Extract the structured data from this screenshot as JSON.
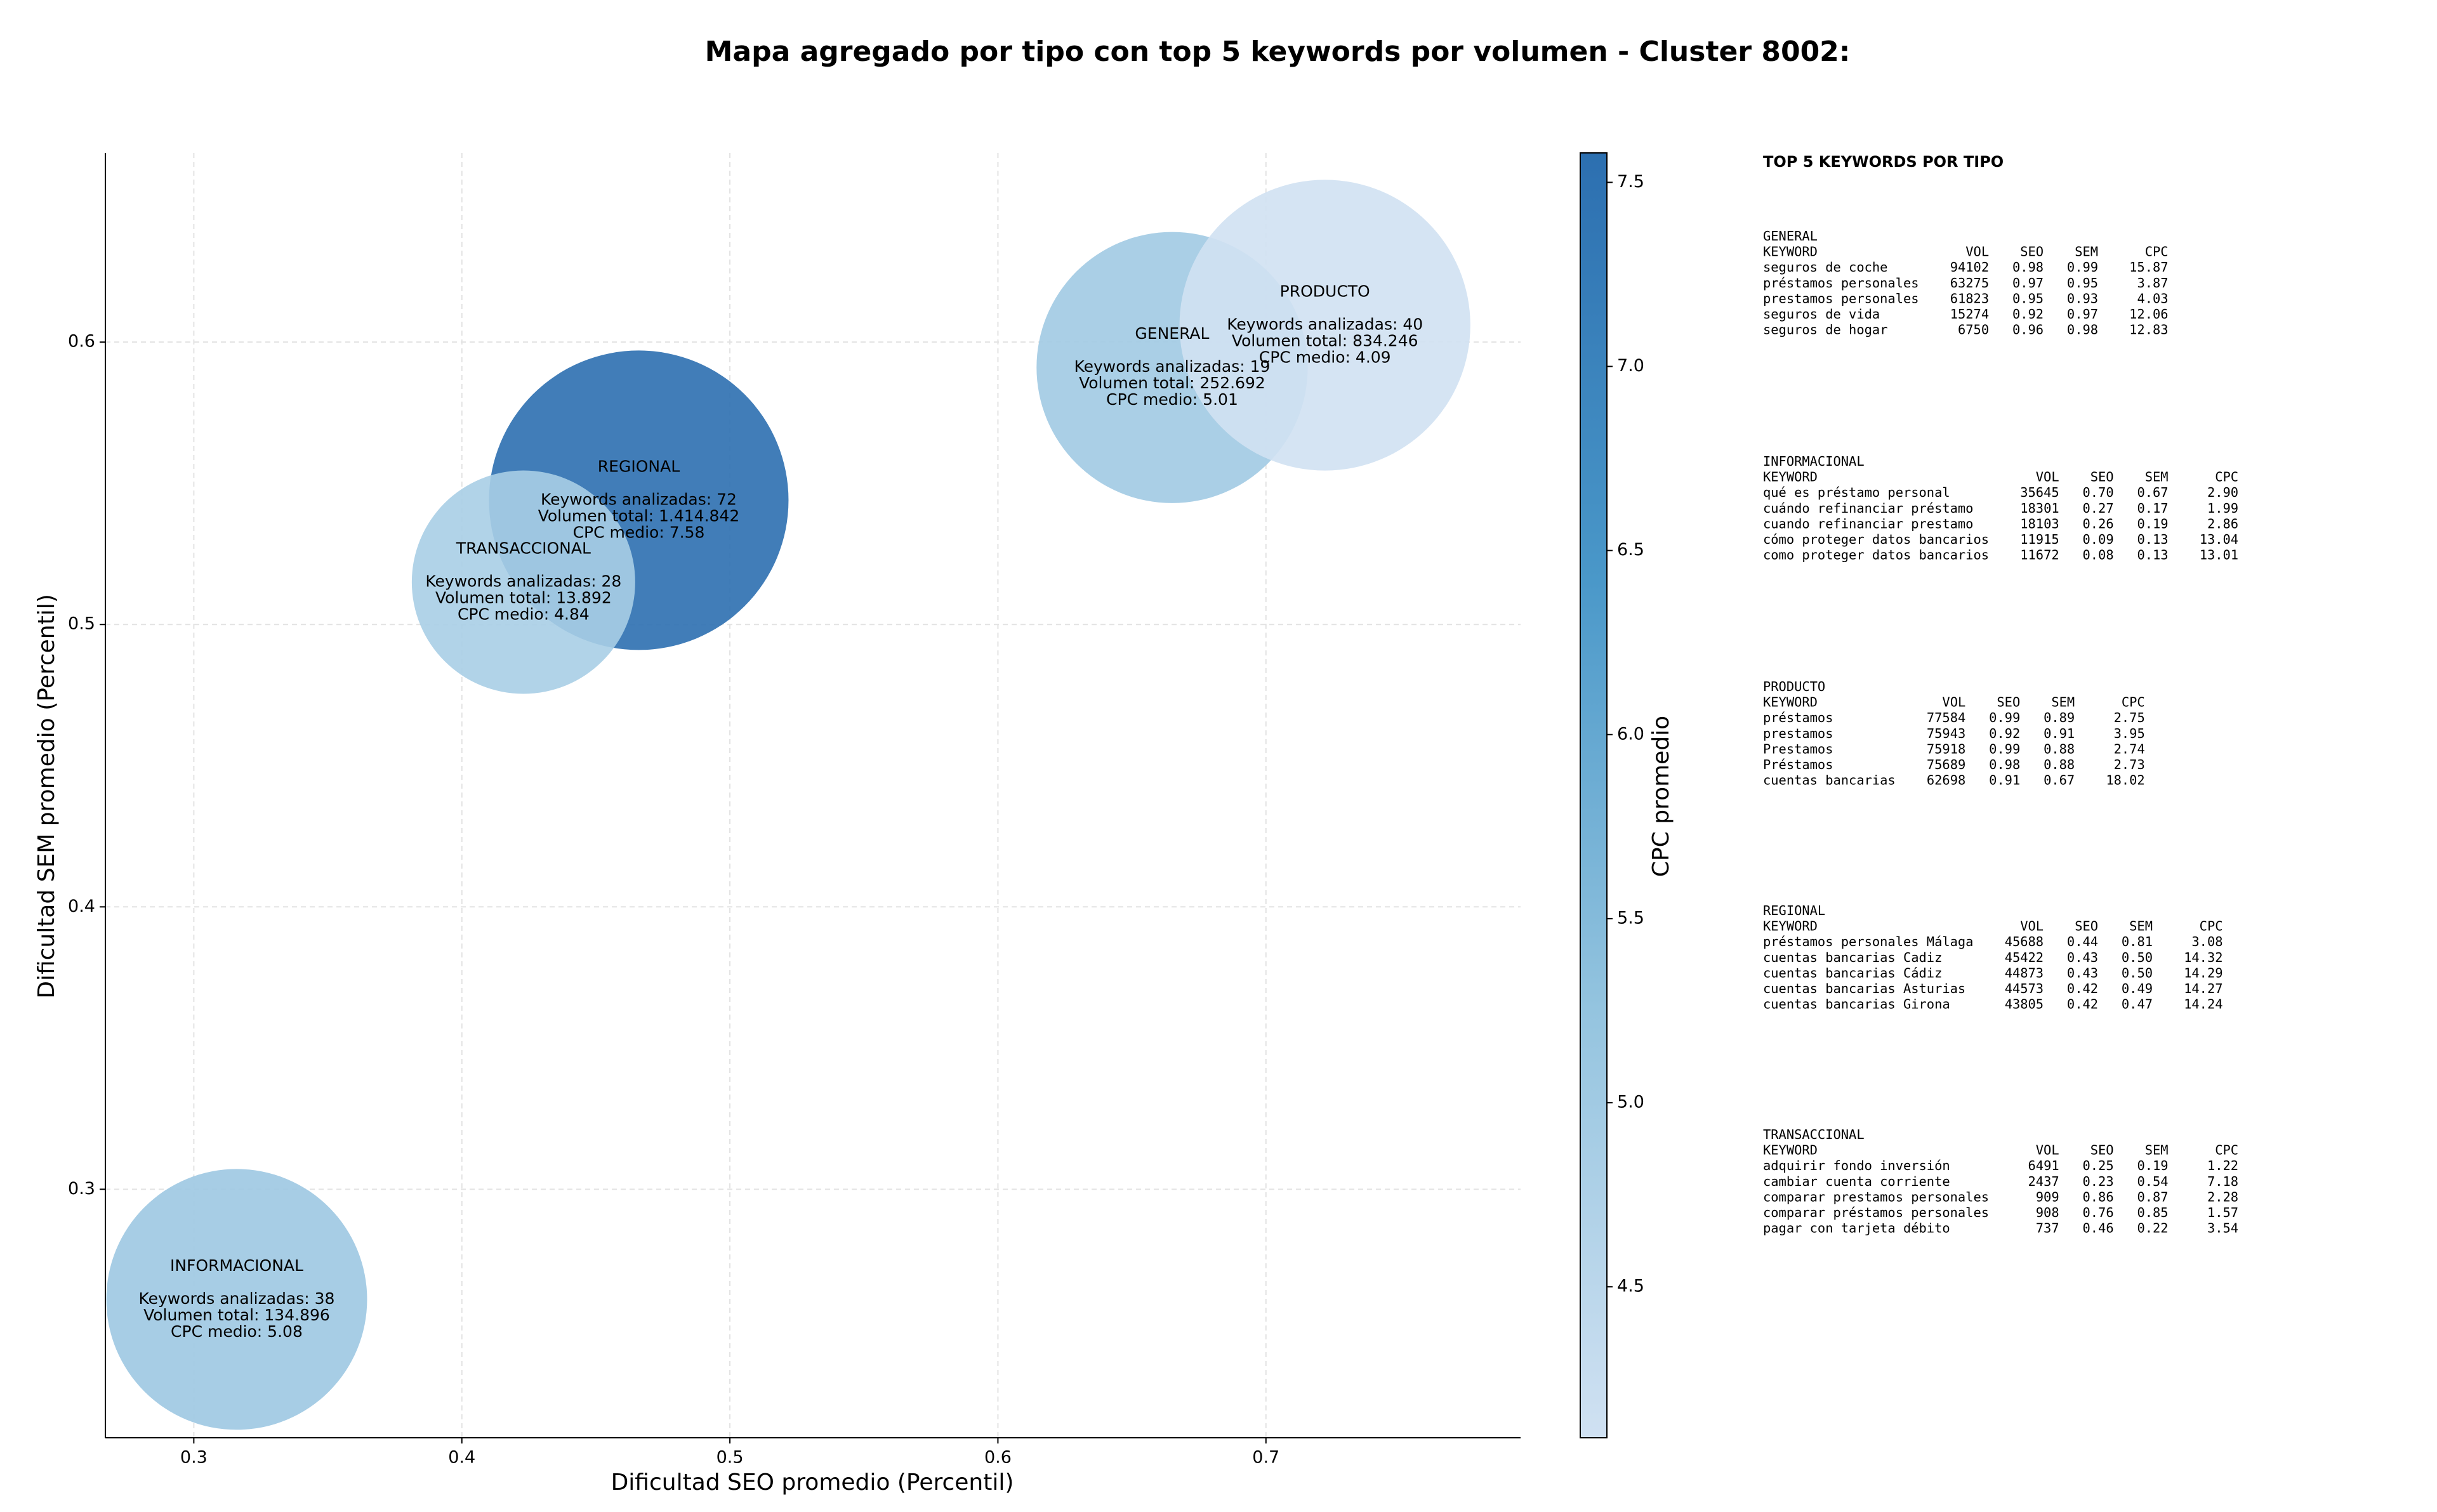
{
  "chart_data": {
    "type": "bubble",
    "title": "Mapa agregado por tipo con top 5 keywords por volumen - Cluster 8002:",
    "x_label": "Dificultad SEO promedio (Percentil)",
    "y_label": "Dificultad SEM promedio (Percentil)",
    "colorbar_label": "CPC promedio",
    "xlim": [
      0.267,
      0.795
    ],
    "ylim": [
      0.212,
      0.667
    ],
    "xticks": [
      0.3,
      0.4,
      0.5,
      0.6,
      0.7
    ],
    "yticks": [
      0.3,
      0.4,
      0.5,
      0.6
    ],
    "clim": [
      4.09,
      7.58
    ],
    "cticks": [
      4.5,
      {
        "value": 5,
        "label": "5.0"
      },
      5.5,
      {
        "value": 6,
        "label": "6.0"
      },
      6.5,
      {
        "value": 7,
        "label": "7.0"
      },
      7.5
    ],
    "colormap": [
      "#d0e1f2",
      "#94c4df",
      "#4a98c9",
      "#2c6fb0"
    ],
    "grid": true,
    "points": [
      {
        "name": "GENERAL",
        "x": 0.665,
        "y": 0.591,
        "volume": 252692,
        "cpc": 5.01,
        "annotation": [
          "Keywords analizadas: 19",
          "Volumen total: 252.692",
          "CPC medio: 5.01"
        ]
      },
      {
        "name": "INFORMACIONAL",
        "x": 0.316,
        "y": 0.261,
        "volume": 134896,
        "cpc": 5.08,
        "annotation": [
          "Keywords analizadas: 38",
          "Volumen total: 134.896",
          "CPC medio: 5.08"
        ]
      },
      {
        "name": "PRODUCTO",
        "x": 0.722,
        "y": 0.606,
        "volume": 834246,
        "cpc": 4.09,
        "annotation": [
          "Keywords analizadas: 40",
          "Volumen total: 834.246",
          "CPC medio: 4.09"
        ]
      },
      {
        "name": "REGIONAL",
        "x": 0.466,
        "y": 0.544,
        "volume": 1414842,
        "cpc": 7.58,
        "annotation": [
          "Keywords analizadas: 72",
          "Volumen total: 1.414.842",
          "CPC medio: 7.58"
        ]
      },
      {
        "name": "TRANSACCIONAL",
        "x": 0.423,
        "y": 0.515,
        "volume": 13892,
        "cpc": 4.84,
        "annotation": [
          "Keywords analizadas: 28",
          "Volumen total: 13.892",
          "CPC medio: 4.84"
        ]
      }
    ]
  },
  "side_panel": {
    "title": "TOP 5 KEYWORDS POR TIPO",
    "tables": [
      {
        "name": "GENERAL",
        "header": [
          "KEYWORD",
          "VOL",
          "SEO",
          "SEM",
          "CPC"
        ],
        "rows": [
          [
            "seguros de coche",
            "94102",
            "0.98",
            "0.99",
            "15.87"
          ],
          [
            "préstamos personales",
            "63275",
            "0.97",
            "0.95",
            "3.87"
          ],
          [
            "prestamos personales",
            "61823",
            "0.95",
            "0.93",
            "4.03"
          ],
          [
            "seguros de vida",
            "15274",
            "0.92",
            "0.97",
            "12.06"
          ],
          [
            "seguros de hogar",
            "6750",
            "0.96",
            "0.98",
            "12.83"
          ]
        ]
      },
      {
        "name": "INFORMACIONAL",
        "header": [
          "KEYWORD",
          "VOL",
          "SEO",
          "SEM",
          "CPC"
        ],
        "rows": [
          [
            "qué es préstamo personal",
            "35645",
            "0.70",
            "0.67",
            "2.90"
          ],
          [
            "cuándo refinanciar préstamo",
            "18301",
            "0.27",
            "0.17",
            "1.99"
          ],
          [
            "cuando refinanciar prestamo",
            "18103",
            "0.26",
            "0.19",
            "2.86"
          ],
          [
            "cómo proteger datos bancarios",
            "11915",
            "0.09",
            "0.13",
            "13.04"
          ],
          [
            "como proteger datos bancarios",
            "11672",
            "0.08",
            "0.13",
            "13.01"
          ]
        ]
      },
      {
        "name": "PRODUCTO",
        "header": [
          "KEYWORD",
          "VOL",
          "SEO",
          "SEM",
          "CPC"
        ],
        "rows": [
          [
            "préstamos",
            "77584",
            "0.99",
            "0.89",
            "2.75"
          ],
          [
            "prestamos",
            "75943",
            "0.92",
            "0.91",
            "3.95"
          ],
          [
            "Prestamos",
            "75918",
            "0.99",
            "0.88",
            "2.74"
          ],
          [
            "Préstamos",
            "75689",
            "0.98",
            "0.88",
            "2.73"
          ],
          [
            "cuentas bancarias",
            "62698",
            "0.91",
            "0.67",
            "18.02"
          ]
        ]
      },
      {
        "name": "REGIONAL",
        "header": [
          "KEYWORD",
          "VOL",
          "SEO",
          "SEM",
          "CPC"
        ],
        "rows": [
          [
            "préstamos personales Málaga",
            "45688",
            "0.44",
            "0.81",
            "3.08"
          ],
          [
            "cuentas bancarias Cadiz",
            "45422",
            "0.43",
            "0.50",
            "14.32"
          ],
          [
            "cuentas bancarias Cádiz",
            "44873",
            "0.43",
            "0.50",
            "14.29"
          ],
          [
            "cuentas bancarias Asturias",
            "44573",
            "0.42",
            "0.49",
            "14.27"
          ],
          [
            "cuentas bancarias Girona",
            "43805",
            "0.42",
            "0.47",
            "14.24"
          ]
        ]
      },
      {
        "name": "TRANSACCIONAL",
        "header": [
          "KEYWORD",
          "VOL",
          "SEO",
          "SEM",
          "CPC"
        ],
        "rows": [
          [
            "adquirir fondo inversión",
            "6491",
            "0.25",
            "0.19",
            "1.22"
          ],
          [
            "cambiar cuenta corriente",
            "2437",
            "0.23",
            "0.54",
            "7.18"
          ],
          [
            "comparar prestamos personales",
            "909",
            "0.86",
            "0.87",
            "2.28"
          ],
          [
            "comparar préstamos personales",
            "908",
            "0.76",
            "0.85",
            "1.57"
          ],
          [
            "pagar con tarjeta débito",
            "737",
            "0.46",
            "0.22",
            "3.54"
          ]
        ]
      }
    ]
  }
}
